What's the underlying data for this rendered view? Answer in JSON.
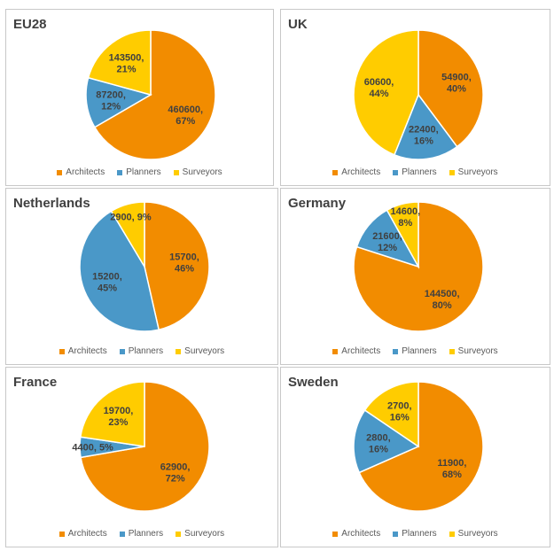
{
  "colors": {
    "Architects": "#F28C00",
    "Planners": "#4A98C8",
    "Surveyors": "#FFCC00"
  },
  "legend": [
    "Architects",
    "Planners",
    "Surveyors"
  ],
  "chart_data": [
    {
      "type": "pie",
      "title": "EU28",
      "categories": [
        "Architects",
        "Planners",
        "Surveyors"
      ],
      "values": [
        460600,
        87200,
        143500
      ],
      "percents": [
        67,
        12,
        21
      ],
      "labels": [
        "460600,\n67%",
        "87200,\n12%",
        "143500,\n21%"
      ]
    },
    {
      "type": "pie",
      "title": "UK",
      "categories": [
        "Architects",
        "Planners",
        "Surveyors"
      ],
      "values": [
        54900,
        22400,
        60600
      ],
      "percents": [
        40,
        16,
        44
      ],
      "labels": [
        "54900,\n40%",
        "22400,\n16%",
        "60600,\n44%"
      ]
    },
    {
      "type": "pie",
      "title": "Netherlands",
      "categories": [
        "Architects",
        "Planners",
        "Surveyors"
      ],
      "values": [
        15700,
        15200,
        2900
      ],
      "percents": [
        46,
        45,
        9
      ],
      "labels": [
        "15700,\n46%",
        "15200,\n45%",
        "2900, 9%"
      ]
    },
    {
      "type": "pie",
      "title": "Germany",
      "categories": [
        "Architects",
        "Planners",
        "Surveyors"
      ],
      "values": [
        144500,
        21600,
        14600
      ],
      "percents": [
        80,
        12,
        8
      ],
      "labels": [
        "144500,\n80%",
        "21600,\n12%",
        "14600,\n8%"
      ]
    },
    {
      "type": "pie",
      "title": "France",
      "categories": [
        "Architects",
        "Planners",
        "Surveyors"
      ],
      "values": [
        62900,
        4400,
        19700
      ],
      "percents": [
        72,
        5,
        23
      ],
      "labels": [
        "62900,\n72%",
        "4400, 5%",
        "19700,\n23%"
      ]
    },
    {
      "type": "pie",
      "title": "Sweden",
      "categories": [
        "Architects",
        "Planners",
        "Surveyors"
      ],
      "values": [
        11900,
        2800,
        2700
      ],
      "percents": [
        68,
        16,
        16
      ],
      "labels": [
        "11900,\n68%",
        "2800,\n16%",
        "2700,\n16%"
      ]
    }
  ]
}
